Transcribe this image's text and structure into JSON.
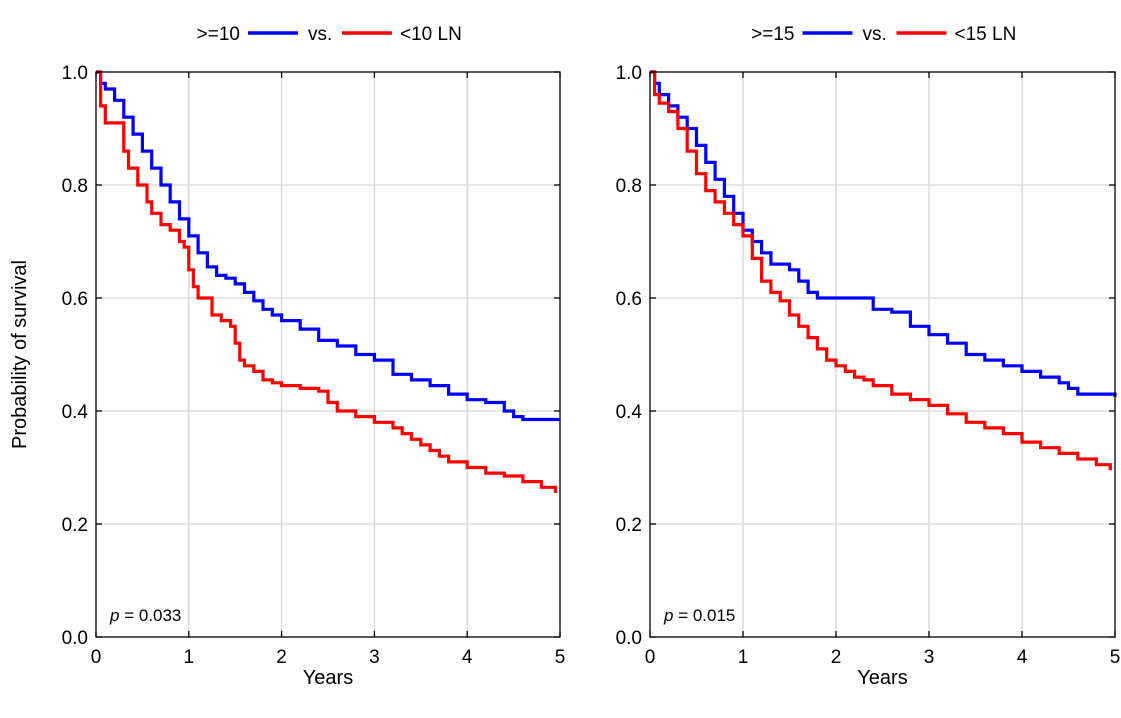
{
  "chart_data": [
    {
      "type": "line",
      "step": true,
      "legend": {
        "placement": "top-center",
        "label_a": ">=10",
        "connector": "vs.",
        "label_b": "<10 LN"
      },
      "xlabel": "Years",
      "ylabel": "Probability of survival",
      "xlim": [
        0,
        5
      ],
      "ylim": [
        0,
        1
      ],
      "xticks": [
        "0",
        "1",
        "2",
        "3",
        "4",
        "5"
      ],
      "yticks": [
        "0.0",
        "0.2",
        "0.4",
        "0.6",
        "0.8",
        "1.0"
      ],
      "grid": true,
      "annotation": {
        "p_symbol": "p",
        "p_text": " = 0.033"
      },
      "series": [
        {
          "name": ">=10",
          "color": "#0000ff",
          "x": [
            0,
            0.05,
            0.1,
            0.2,
            0.3,
            0.4,
            0.5,
            0.6,
            0.7,
            0.8,
            0.9,
            1.0,
            1.1,
            1.2,
            1.3,
            1.4,
            1.5,
            1.6,
            1.7,
            1.8,
            1.9,
            2.0,
            2.2,
            2.4,
            2.6,
            2.8,
            3.0,
            3.2,
            3.4,
            3.6,
            3.8,
            4.0,
            4.2,
            4.4,
            4.5,
            4.6,
            5.0
          ],
          "y": [
            1.0,
            0.98,
            0.97,
            0.95,
            0.92,
            0.89,
            0.86,
            0.83,
            0.8,
            0.77,
            0.74,
            0.71,
            0.68,
            0.655,
            0.64,
            0.635,
            0.625,
            0.61,
            0.595,
            0.58,
            0.57,
            0.56,
            0.545,
            0.525,
            0.515,
            0.5,
            0.49,
            0.465,
            0.455,
            0.445,
            0.43,
            0.42,
            0.415,
            0.4,
            0.39,
            0.385,
            0.385
          ]
        },
        {
          "name": "<10 LN",
          "color": "#ff0000",
          "x": [
            0,
            0.05,
            0.1,
            0.3,
            0.35,
            0.45,
            0.55,
            0.6,
            0.7,
            0.8,
            0.9,
            0.95,
            1.0,
            1.05,
            1.1,
            1.25,
            1.35,
            1.45,
            1.5,
            1.55,
            1.6,
            1.7,
            1.8,
            1.9,
            2.0,
            2.2,
            2.4,
            2.5,
            2.6,
            2.8,
            3.0,
            3.2,
            3.3,
            3.4,
            3.5,
            3.6,
            3.7,
            3.8,
            4.0,
            4.2,
            4.4,
            4.6,
            4.8,
            4.95
          ],
          "y": [
            1.0,
            0.94,
            0.91,
            0.86,
            0.83,
            0.8,
            0.77,
            0.75,
            0.73,
            0.72,
            0.7,
            0.69,
            0.65,
            0.62,
            0.6,
            0.57,
            0.56,
            0.55,
            0.52,
            0.49,
            0.48,
            0.47,
            0.455,
            0.45,
            0.445,
            0.44,
            0.435,
            0.415,
            0.4,
            0.39,
            0.38,
            0.37,
            0.36,
            0.35,
            0.34,
            0.33,
            0.32,
            0.31,
            0.3,
            0.29,
            0.285,
            0.275,
            0.265,
            0.255
          ]
        }
      ]
    },
    {
      "type": "line",
      "step": true,
      "legend": {
        "placement": "top-center",
        "label_a": ">=15",
        "connector": "vs.",
        "label_b": "<15 LN"
      },
      "xlabel": "Years",
      "ylabel": "",
      "xlim": [
        0,
        5
      ],
      "ylim": [
        0,
        1
      ],
      "xticks": [
        "0",
        "1",
        "2",
        "3",
        "4",
        "5"
      ],
      "yticks": [
        "0.0",
        "0.2",
        "0.4",
        "0.6",
        "0.8",
        "1.0"
      ],
      "grid": true,
      "annotation": {
        "p_symbol": "p",
        "p_text": " = 0.015"
      },
      "series": [
        {
          "name": ">=15",
          "color": "#0000ff",
          "x": [
            0,
            0.05,
            0.1,
            0.2,
            0.3,
            0.4,
            0.5,
            0.6,
            0.7,
            0.8,
            0.9,
            1.0,
            1.1,
            1.2,
            1.3,
            1.5,
            1.6,
            1.7,
            1.8,
            2.0,
            2.4,
            2.6,
            2.8,
            3.0,
            3.2,
            3.4,
            3.6,
            3.8,
            4.0,
            4.2,
            4.4,
            4.5,
            4.6,
            5.0
          ],
          "y": [
            1.0,
            0.98,
            0.96,
            0.94,
            0.92,
            0.9,
            0.87,
            0.84,
            0.81,
            0.78,
            0.75,
            0.72,
            0.7,
            0.68,
            0.66,
            0.65,
            0.63,
            0.61,
            0.6,
            0.6,
            0.58,
            0.575,
            0.55,
            0.535,
            0.52,
            0.5,
            0.49,
            0.48,
            0.47,
            0.46,
            0.45,
            0.44,
            0.43,
            0.425
          ]
        },
        {
          "name": "<15 LN",
          "color": "#ff0000",
          "x": [
            0,
            0.05,
            0.1,
            0.2,
            0.3,
            0.4,
            0.5,
            0.6,
            0.7,
            0.8,
            0.9,
            1.0,
            1.1,
            1.2,
            1.3,
            1.4,
            1.5,
            1.6,
            1.7,
            1.8,
            1.9,
            2.0,
            2.1,
            2.2,
            2.3,
            2.4,
            2.6,
            2.8,
            3.0,
            3.2,
            3.4,
            3.6,
            3.8,
            4.0,
            4.2,
            4.4,
            4.6,
            4.8,
            4.95
          ],
          "y": [
            1.0,
            0.96,
            0.945,
            0.93,
            0.9,
            0.86,
            0.82,
            0.79,
            0.77,
            0.75,
            0.73,
            0.71,
            0.67,
            0.63,
            0.61,
            0.595,
            0.57,
            0.55,
            0.53,
            0.51,
            0.49,
            0.48,
            0.47,
            0.46,
            0.455,
            0.445,
            0.43,
            0.42,
            0.41,
            0.395,
            0.38,
            0.37,
            0.36,
            0.345,
            0.335,
            0.325,
            0.315,
            0.305,
            0.295
          ]
        }
      ]
    }
  ]
}
